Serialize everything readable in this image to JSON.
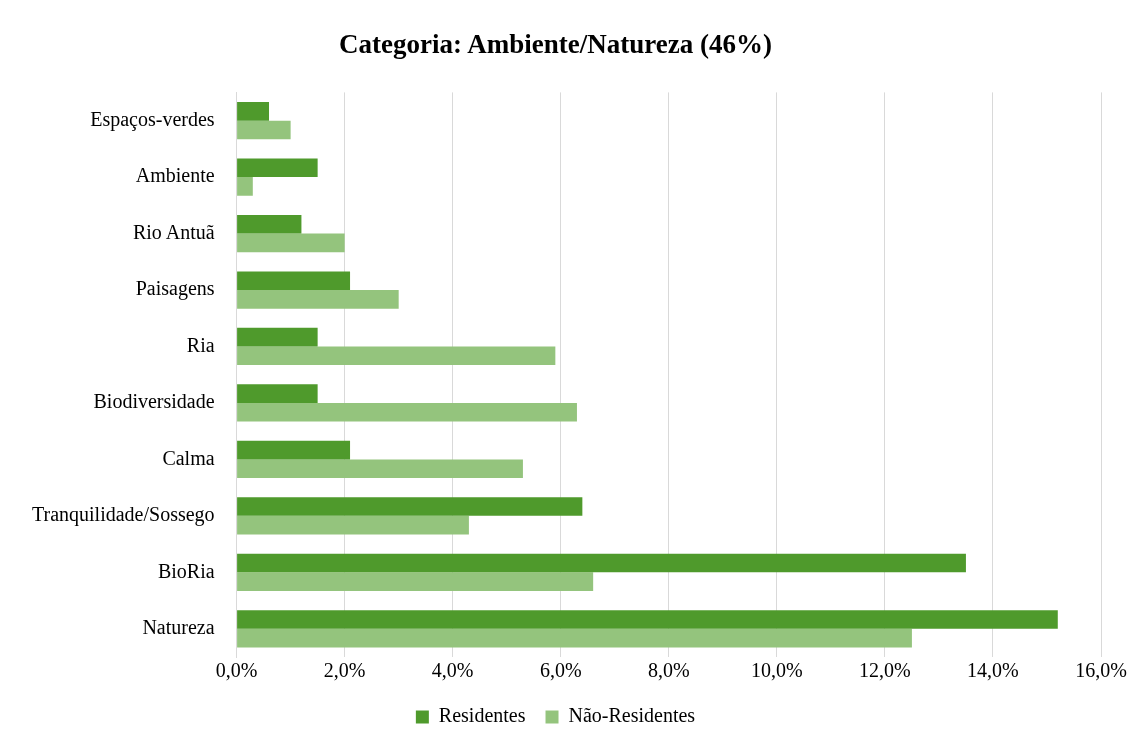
{
  "chart_data": {
    "type": "bar",
    "orientation": "horizontal",
    "title": "Categoria: Ambiente/Natureza (46%)",
    "categories": [
      "Espaços-verdes",
      "Ambiente",
      "Rio Antuã",
      "Paisagens",
      "Ria",
      "Biodiversidade",
      "Calma",
      "Tranquilidade/Sossego",
      "BioRia",
      "Natureza"
    ],
    "series": [
      {
        "name": "Residentes",
        "color": "#4f9a2c",
        "values": [
          0.6,
          1.5,
          1.2,
          2.1,
          1.5,
          1.5,
          2.1,
          6.4,
          13.5,
          15.2
        ]
      },
      {
        "name": "Não-Residentes",
        "color": "#94c47d",
        "values": [
          1.0,
          0.3,
          2.0,
          3.0,
          5.9,
          6.3,
          5.3,
          4.3,
          6.6,
          12.5
        ]
      }
    ],
    "xlim": [
      0,
      16
    ],
    "xticks": [
      {
        "value": 0,
        "label": "0,0%"
      },
      {
        "value": 2,
        "label": "2,0%"
      },
      {
        "value": 4,
        "label": "4,0%"
      },
      {
        "value": 6,
        "label": "6,0%"
      },
      {
        "value": 8,
        "label": "8,0%"
      },
      {
        "value": 10,
        "label": "10,0%"
      },
      {
        "value": 12,
        "label": "12,0%"
      },
      {
        "value": 14,
        "label": "14,0%"
      },
      {
        "value": 16,
        "label": "16,0%"
      }
    ],
    "grid": "x",
    "legend": "bottom"
  }
}
